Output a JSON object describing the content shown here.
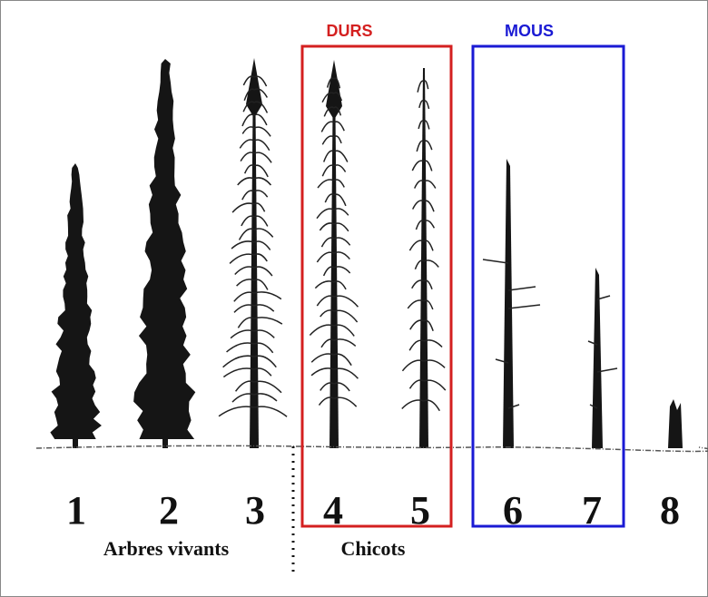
{
  "labels": {
    "hard": "DURS",
    "soft": "MOUS"
  },
  "tree_numbers": [
    "1",
    "2",
    "3",
    "4",
    "5",
    "6",
    "7",
    "8"
  ],
  "groups": {
    "living": "Arbres vivants",
    "snags": "Chicots"
  }
}
